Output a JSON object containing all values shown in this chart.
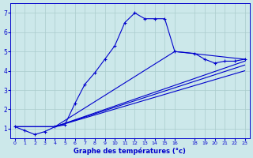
{
  "background_color": "#cce8ea",
  "grid_color": "#aacccc",
  "line_color": "#0000cc",
  "xlabel": "Graphe des températures (°c)",
  "ylim": [
    0.5,
    7.5
  ],
  "xlim": [
    -0.5,
    23.5
  ],
  "yticks": [
    1,
    2,
    3,
    4,
    5,
    6,
    7
  ],
  "xticks": [
    0,
    1,
    2,
    3,
    4,
    5,
    6,
    7,
    8,
    9,
    10,
    11,
    12,
    13,
    14,
    15,
    16,
    18,
    19,
    20,
    21,
    22,
    23
  ],
  "series": [
    {
      "x": [
        0,
        1,
        2,
        3,
        4,
        5,
        6,
        7,
        8,
        9,
        10,
        11,
        12,
        13,
        14,
        15,
        16,
        18,
        19,
        20,
        21,
        22,
        23
      ],
      "y": [
        1.1,
        0.9,
        0.7,
        0.85,
        1.1,
        1.2,
        2.3,
        3.3,
        3.9,
        4.6,
        5.3,
        6.5,
        7.0,
        6.7,
        6.7,
        6.7,
        5.0,
        4.9,
        4.6,
        4.4,
        4.5,
        4.5,
        4.6
      ],
      "marker": true
    },
    {
      "x": [
        0,
        4,
        16,
        23
      ],
      "y": [
        1.1,
        1.1,
        5.0,
        4.6
      ],
      "marker": false
    },
    {
      "x": [
        0,
        4,
        23
      ],
      "y": [
        1.1,
        1.1,
        4.5
      ],
      "marker": false
    },
    {
      "x": [
        0,
        4,
        23
      ],
      "y": [
        1.1,
        1.1,
        4.3
      ],
      "marker": false
    },
    {
      "x": [
        0,
        4,
        23
      ],
      "y": [
        1.1,
        1.1,
        4.0
      ],
      "marker": false
    }
  ]
}
